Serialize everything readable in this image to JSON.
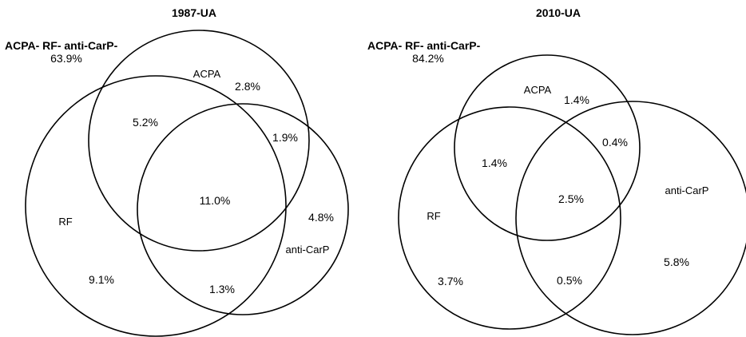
{
  "diagrams": [
    {
      "title": "1987-UA",
      "neg_label": "ACPA- RF- anti-CarP-",
      "neg_value": "63.9%",
      "sets": {
        "acpa": "ACPA",
        "rf": "RF",
        "carp": "anti-CarP"
      },
      "regions": {
        "acpa_only": "2.8%",
        "rf_only": "9.1%",
        "carp_only": "4.8%",
        "acpa_rf": "5.2%",
        "acpa_carp": "1.9%",
        "rf_carp": "1.3%",
        "all": "11.0%"
      }
    },
    {
      "title": "2010-UA",
      "neg_label": "ACPA- RF- anti-CarP-",
      "neg_value": "84.2%",
      "sets": {
        "acpa": "ACPA",
        "rf": "RF",
        "carp": "anti-CarP"
      },
      "regions": {
        "acpa_only": "1.4%",
        "rf_only": "3.7%",
        "carp_only": "5.8%",
        "acpa_rf": "1.4%",
        "acpa_carp": "0.4%",
        "rf_carp": "0.5%",
        "all": "2.5%"
      }
    }
  ]
}
